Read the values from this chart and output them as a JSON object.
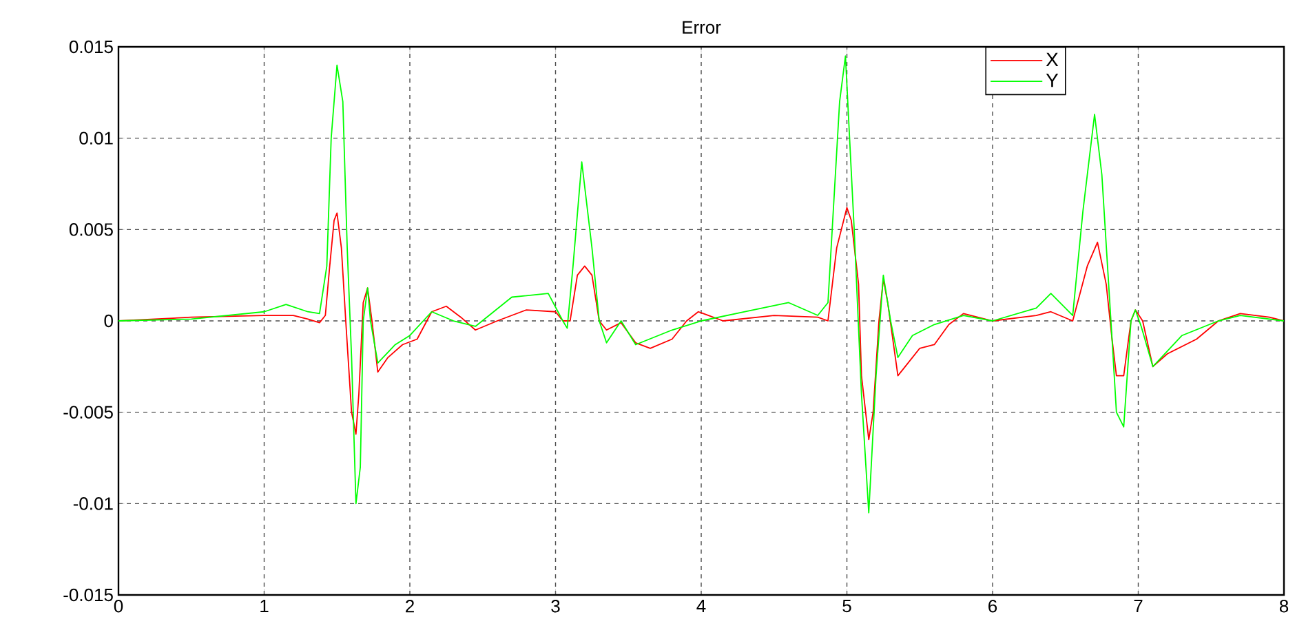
{
  "chart_data": {
    "type": "line",
    "title": "Error",
    "xlim": [
      0,
      8
    ],
    "xticks": [
      0,
      1,
      2,
      3,
      4,
      5,
      6,
      7,
      8
    ],
    "ylim": [
      -0.015,
      0.015
    ],
    "yticks": [
      -0.015,
      -0.01,
      -0.005,
      0,
      0.005,
      0.01,
      0.015
    ],
    "grid": true,
    "legend": "top right",
    "line_style": "solid",
    "marker": "none",
    "series": [
      {
        "name": "X",
        "color": "#ff0000",
        "x": [
          0,
          0.5,
          1,
          1.2,
          1.3,
          1.38,
          1.42,
          1.45,
          1.48,
          1.5,
          1.53,
          1.56,
          1.6,
          1.63,
          1.65,
          1.68,
          1.71,
          1.74,
          1.78,
          1.85,
          1.95,
          2.05,
          2.15,
          2.25,
          2.35,
          2.45,
          2.6,
          2.8,
          3.0,
          3.05,
          3.1,
          3.15,
          3.2,
          3.25,
          3.3,
          3.35,
          3.45,
          3.55,
          3.65,
          3.8,
          3.9,
          3.98,
          4.05,
          4.15,
          4.5,
          4.8,
          4.87,
          4.93,
          5.0,
          5.03,
          5.08,
          5.1,
          5.15,
          5.18,
          5.22,
          5.25,
          5.28,
          5.35,
          5.4,
          5.5,
          5.6,
          5.7,
          5.8,
          6.0,
          6.3,
          6.4,
          6.55,
          6.65,
          6.72,
          6.78,
          6.82,
          6.85,
          6.9,
          6.95,
          6.98,
          7.03,
          7.1,
          7.2,
          7.4,
          7.55,
          7.7,
          7.9,
          8
        ],
        "values": [
          0,
          0.0002,
          0.0003,
          0.0003,
          0.0001,
          -0.0001,
          0.0003,
          0.003,
          0.0055,
          0.0059,
          0.004,
          0.0,
          -0.005,
          -0.0062,
          -0.004,
          0.001,
          0.0018,
          0.0,
          -0.0028,
          -0.002,
          -0.0013,
          -0.001,
          0.0005,
          0.0008,
          0.0002,
          -0.0005,
          0.0,
          0.0006,
          0.0005,
          0.0,
          0.0,
          0.0025,
          0.003,
          0.0025,
          0.0,
          -0.0005,
          -0.0001,
          -0.0012,
          -0.0015,
          -0.001,
          0.0,
          0.0005,
          0.0003,
          0.0,
          0.0003,
          0.0002,
          0.0,
          0.004,
          0.0062,
          0.0055,
          0.002,
          -0.003,
          -0.0065,
          -0.005,
          0.0,
          0.0023,
          0.001,
          -0.003,
          -0.0025,
          -0.0015,
          -0.0013,
          -0.0002,
          0.0004,
          0.0,
          0.0003,
          0.0005,
          0.0,
          0.003,
          0.0043,
          0.002,
          -0.001,
          -0.003,
          -0.003,
          0.0,
          0.0006,
          0.0,
          -0.0025,
          -0.0018,
          -0.001,
          0.0,
          0.0004,
          0.0002,
          0
        ]
      },
      {
        "name": "Y",
        "color": "#00ff00",
        "x": [
          0,
          0.5,
          1,
          1.15,
          1.3,
          1.38,
          1.43,
          1.46,
          1.5,
          1.54,
          1.57,
          1.6,
          1.63,
          1.66,
          1.68,
          1.71,
          1.73,
          1.78,
          1.9,
          2.0,
          2.15,
          2.3,
          2.45,
          2.7,
          2.95,
          3.05,
          3.08,
          3.12,
          3.18,
          3.25,
          3.3,
          3.35,
          3.45,
          3.55,
          3.8,
          4.0,
          4.3,
          4.6,
          4.8,
          4.87,
          4.95,
          4.99,
          5.05,
          5.1,
          5.15,
          5.2,
          5.25,
          5.3,
          5.35,
          5.45,
          5.6,
          5.8,
          6.0,
          6.3,
          6.4,
          6.55,
          6.62,
          6.7,
          6.75,
          6.82,
          6.85,
          6.9,
          6.95,
          6.98,
          7.02,
          7.1,
          7.3,
          7.55,
          7.7,
          8
        ],
        "values": [
          0,
          0.0001,
          0.0005,
          0.0009,
          0.0005,
          0.0004,
          0.003,
          0.01,
          0.014,
          0.012,
          0.004,
          -0.002,
          -0.01,
          -0.008,
          0.0,
          0.0018,
          0.0,
          -0.0023,
          -0.0013,
          -0.0008,
          0.0005,
          0.0,
          -0.0003,
          0.0013,
          0.0015,
          0.0,
          -0.0004,
          0.003,
          0.0087,
          0.004,
          0.0,
          -0.0012,
          0.0,
          -0.0013,
          -0.0005,
          0.0,
          0.0005,
          0.001,
          0.0003,
          0.001,
          0.012,
          0.0145,
          0.005,
          -0.004,
          -0.0105,
          -0.003,
          0.0025,
          0.0,
          -0.002,
          -0.0008,
          -0.0002,
          0.0003,
          0.0,
          0.0007,
          0.0015,
          0.0003,
          0.006,
          0.0113,
          0.008,
          -0.001,
          -0.005,
          -0.0058,
          0.0,
          0.0006,
          -0.0003,
          -0.0025,
          -0.0008,
          0.0,
          0.0003,
          0
        ]
      }
    ]
  }
}
